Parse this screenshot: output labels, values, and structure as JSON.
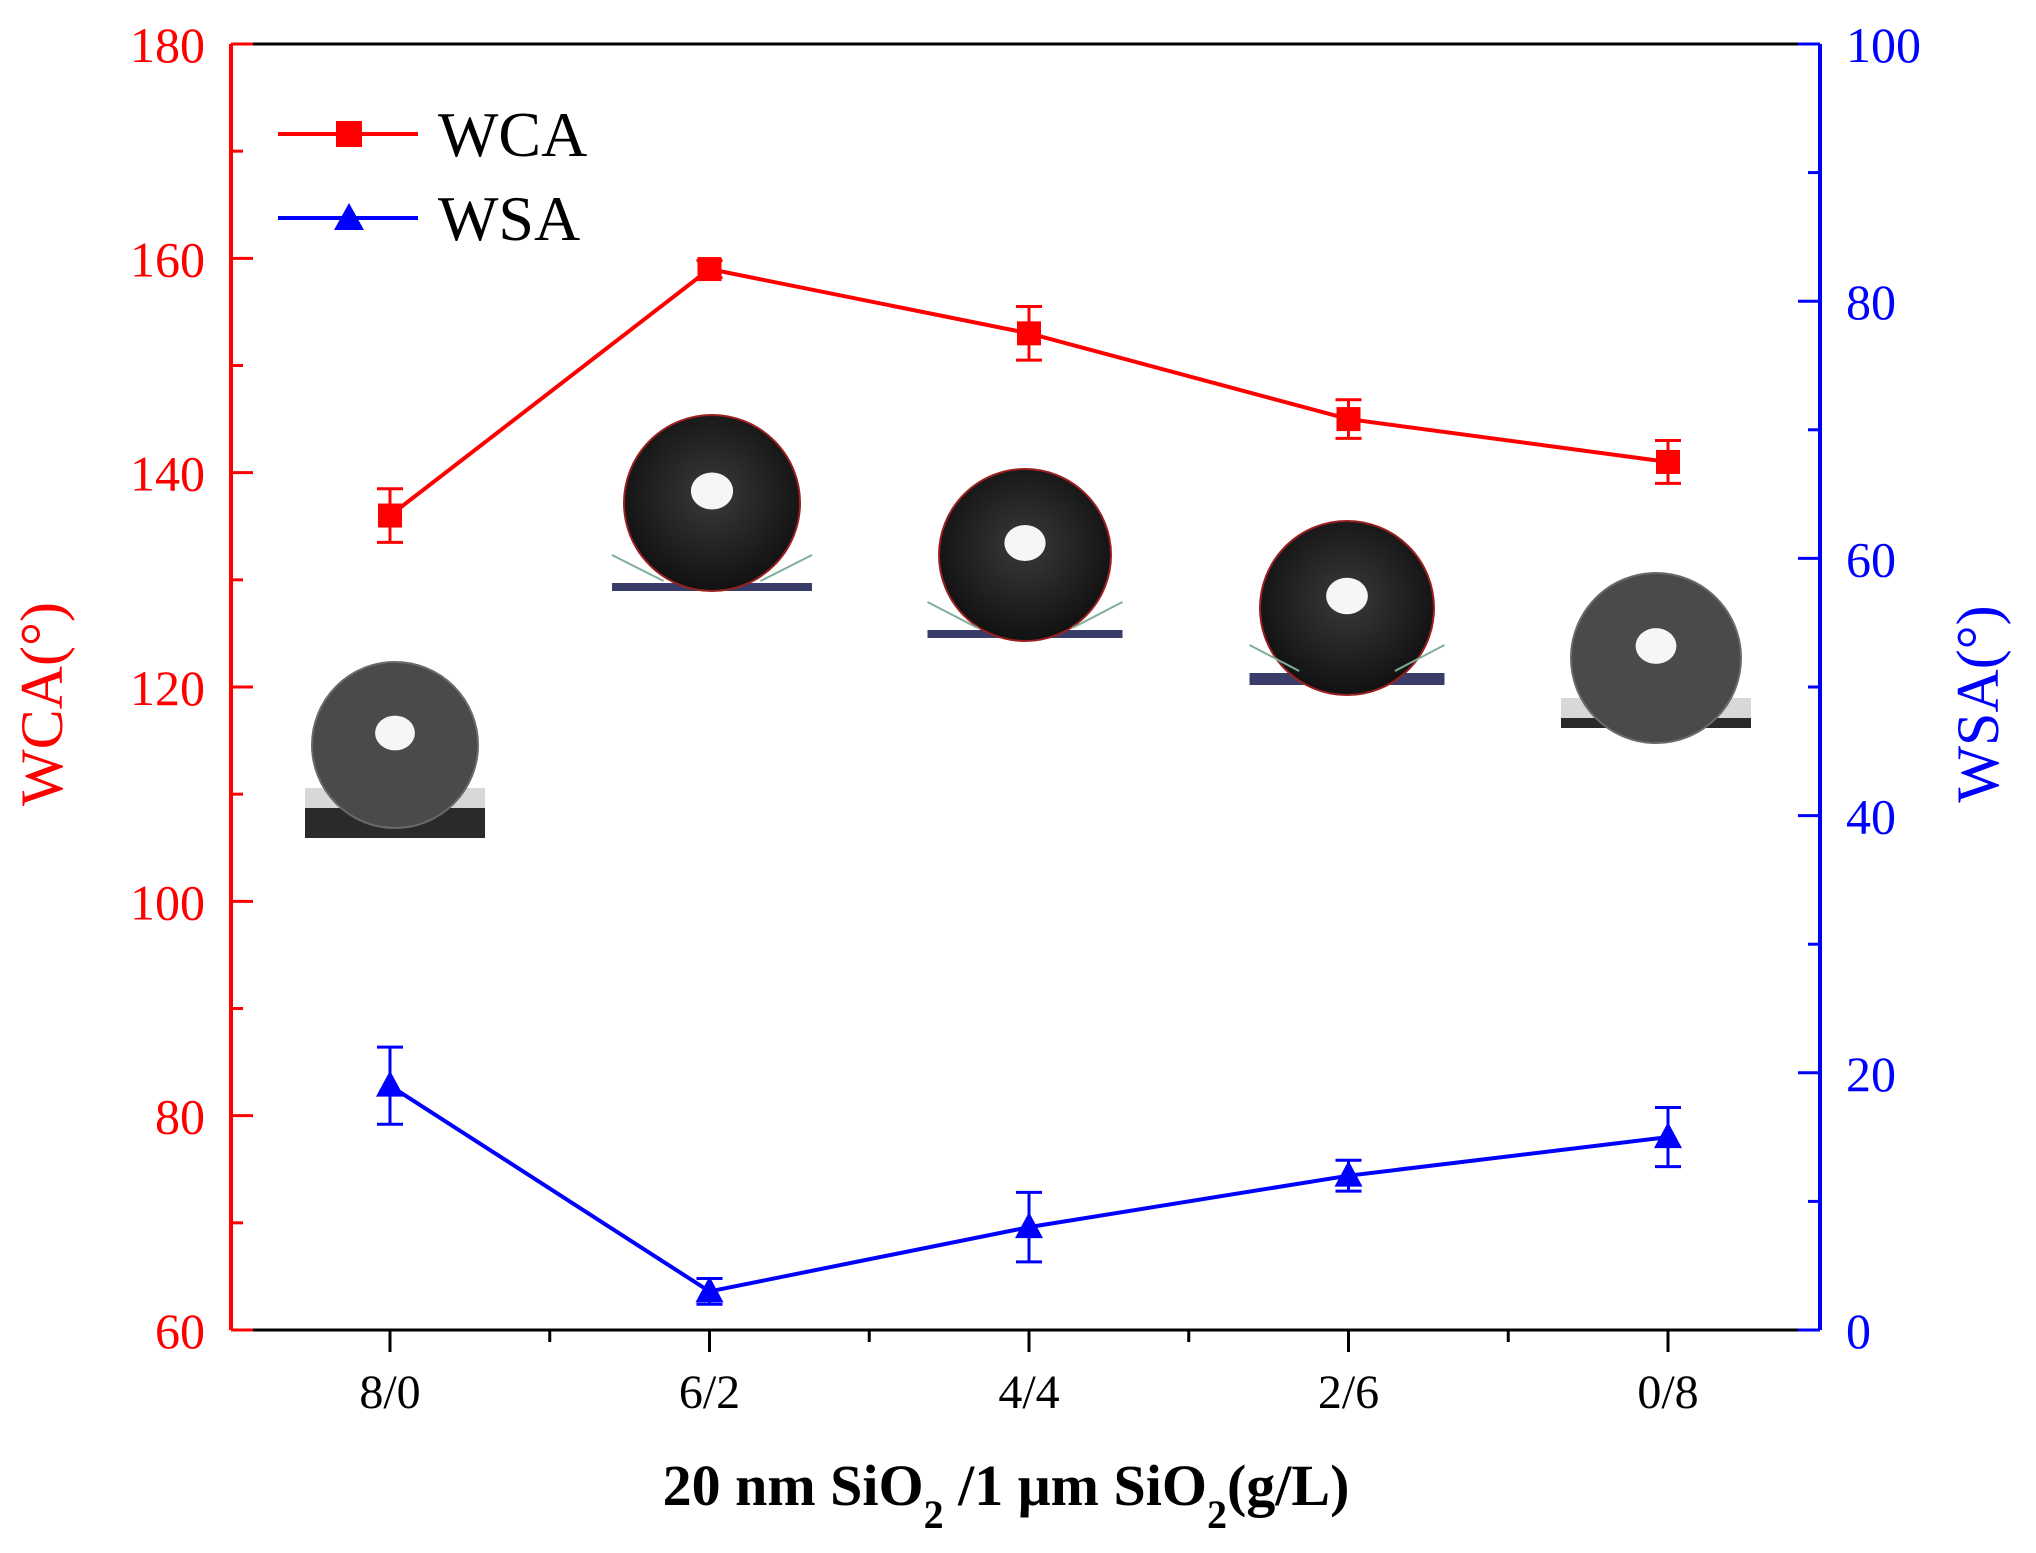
{
  "chart_data": {
    "type": "line",
    "x_axis": {
      "label_parts": [
        {
          "text": "20 nm SiO"
        },
        {
          "text": "2",
          "sub": true
        },
        {
          "text": " /1 μm SiO"
        },
        {
          "text": "2",
          "sub": true
        },
        {
          "text": "(g/L)"
        }
      ],
      "categories": [
        "8/0",
        "6/2",
        "4/4",
        "2/6",
        "0/8"
      ]
    },
    "y_left": {
      "label": "WCA(°)",
      "min": 60,
      "max": 180,
      "ticks": [
        60,
        80,
        100,
        120,
        140,
        160,
        180
      ],
      "color": "#ff0000"
    },
    "y_right": {
      "label": "WSA(°)",
      "min": 0,
      "max": 100,
      "ticks": [
        0,
        20,
        40,
        60,
        80,
        100
      ],
      "color": "#0000ff"
    },
    "series": [
      {
        "name": "WCA",
        "axis": "left",
        "marker": "square",
        "color": "#ff0000",
        "values": [
          136,
          159,
          153,
          145,
          141
        ],
        "errors": [
          2.5,
          0.8,
          2.5,
          1.8,
          2.0
        ]
      },
      {
        "name": "WSA",
        "axis": "right",
        "marker": "triangle",
        "color": "#0000ff",
        "values": [
          19,
          3,
          8,
          12,
          15
        ],
        "errors": [
          3.0,
          1.0,
          2.7,
          1.2,
          2.3
        ]
      }
    ],
    "legend": {
      "position": "top-left",
      "entries": [
        "WCA",
        "WSA"
      ]
    },
    "insets": [
      {
        "category": "8/0",
        "description": "water droplet photo"
      },
      {
        "category": "6/2",
        "description": "water droplet photo"
      },
      {
        "category": "4/4",
        "description": "water droplet photo"
      },
      {
        "category": "2/6",
        "description": "water droplet photo"
      },
      {
        "category": "0/8",
        "description": "water droplet photo"
      }
    ]
  }
}
